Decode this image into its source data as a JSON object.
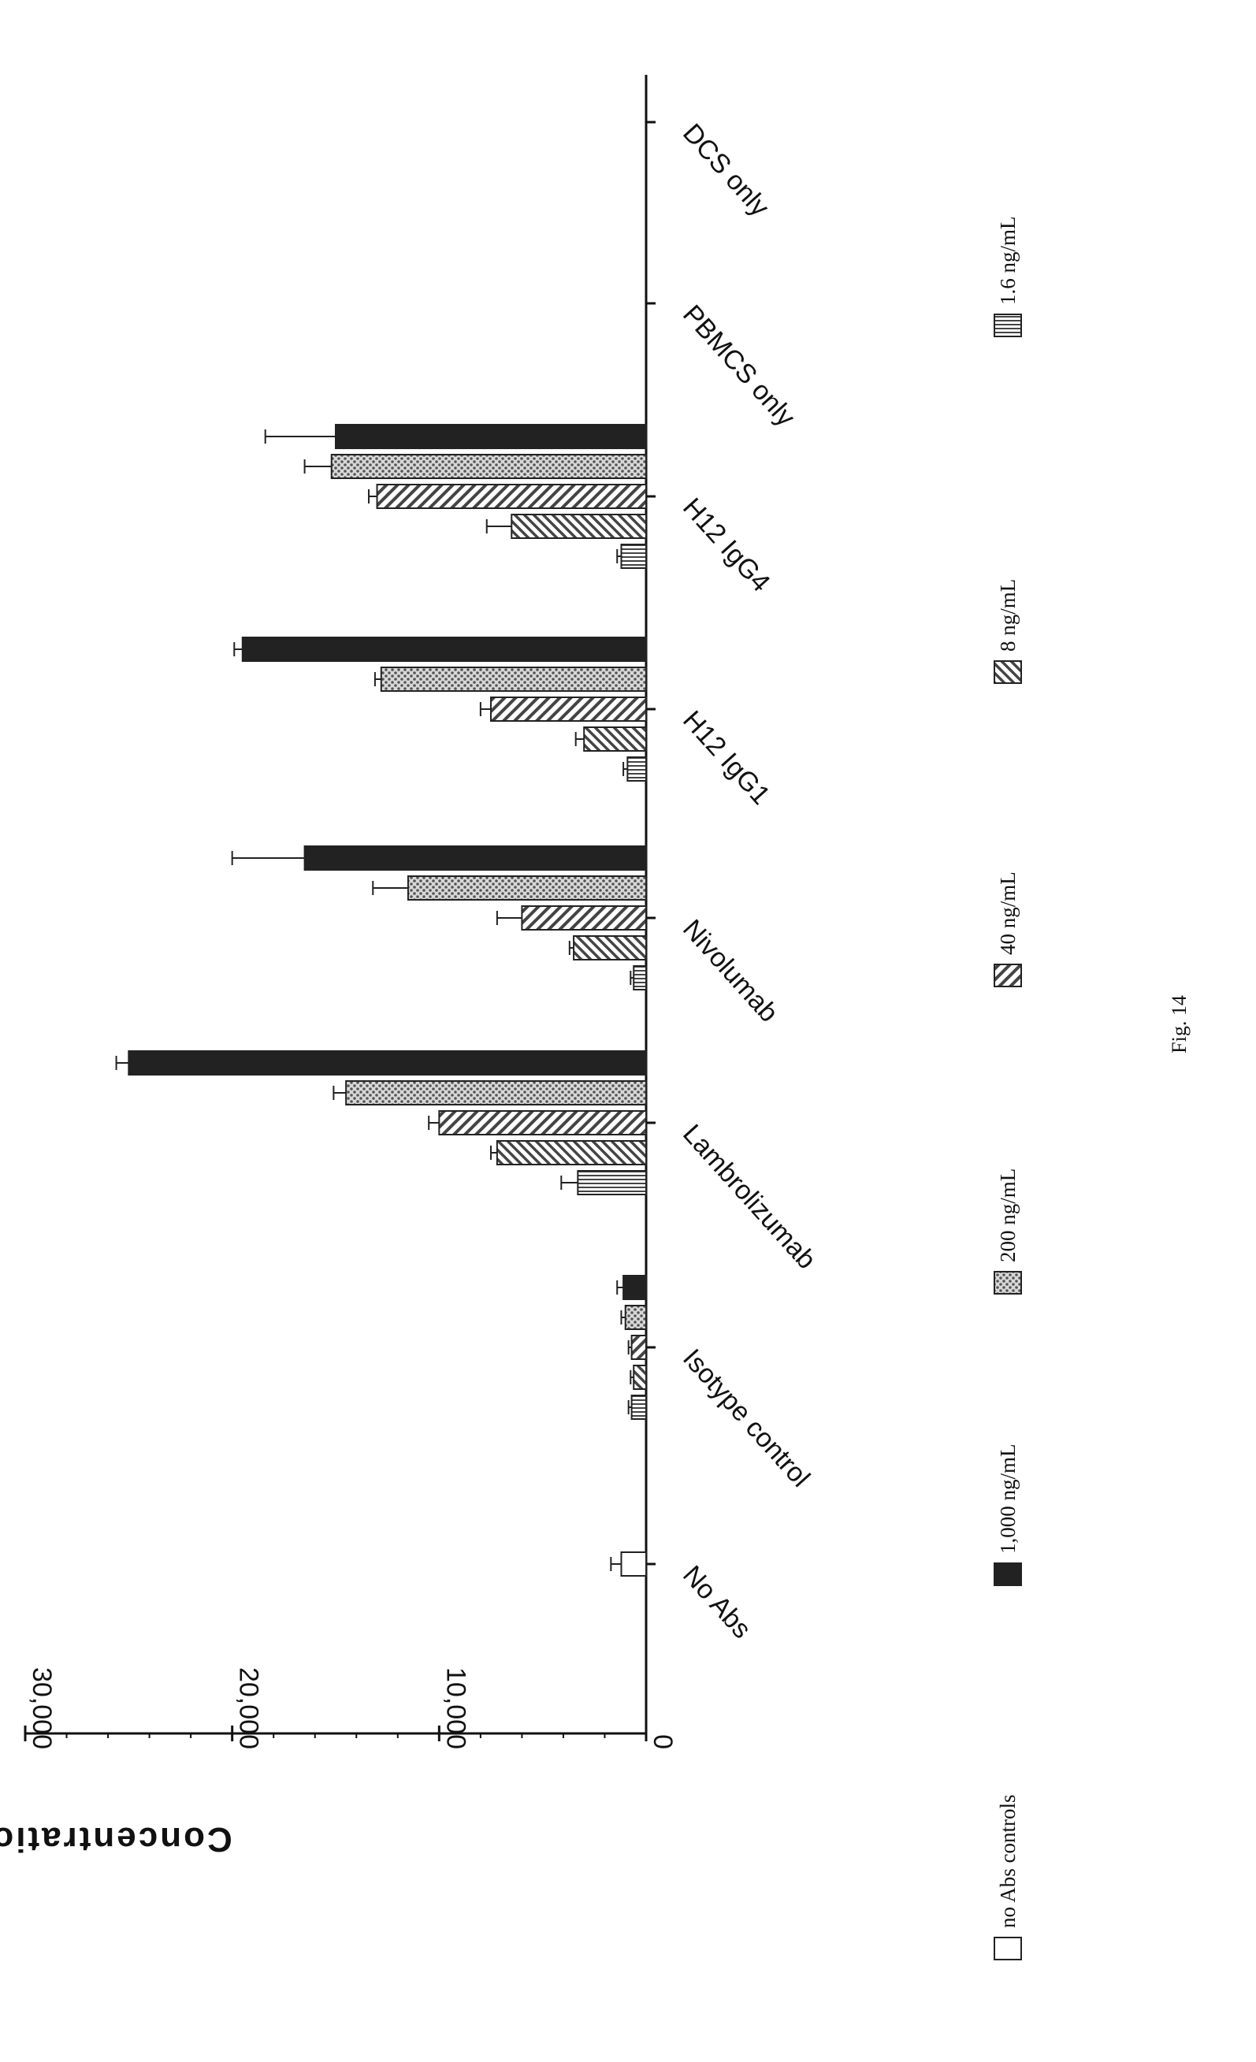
{
  "figure_label": "Fig. 14",
  "chart_data": {
    "type": "bar",
    "title": "",
    "xlabel": "",
    "ylabel": "Concentration pg/mL",
    "ylim": [
      0,
      30000
    ],
    "yticks": [
      0,
      10000,
      20000,
      30000
    ],
    "ytick_labels": [
      "0",
      "10,000",
      "20,000",
      "30,000"
    ],
    "categories": [
      "No Abs",
      "Isotype control",
      "Lambrolizumab",
      "Nivolumab",
      "H12 IgG1",
      "H12 IgG4",
      "PBMCS only",
      "DCS only"
    ],
    "legend_position": "bottom",
    "series": [
      {
        "name": "no Abs controls",
        "pattern": "empty",
        "color": "#ffffff",
        "values": [
          1200,
          null,
          null,
          null,
          null,
          null,
          0,
          0
        ],
        "errors": [
          500,
          null,
          null,
          null,
          null,
          null,
          0,
          0
        ]
      },
      {
        "name": "1,000 ng/mL",
        "pattern": "solid-dark",
        "color": "#222222",
        "values": [
          null,
          1100,
          25000,
          16500,
          19500,
          15000,
          null,
          null
        ],
        "errors": [
          null,
          300,
          600,
          3500,
          400,
          3400,
          null,
          null
        ]
      },
      {
        "name": "200 ng/mL",
        "pattern": "dense-dots",
        "color": "#9a9a9a",
        "values": [
          null,
          1000,
          14500,
          11500,
          12800,
          15200,
          null,
          null
        ],
        "errors": [
          null,
          200,
          600,
          1700,
          300,
          1300,
          null,
          null
        ]
      },
      {
        "name": "40 ng/mL",
        "pattern": "diagonal",
        "color": "#666666",
        "values": [
          null,
          700,
          10000,
          6000,
          7500,
          13000,
          null,
          null
        ],
        "errors": [
          null,
          150,
          500,
          1200,
          500,
          400,
          null,
          null
        ]
      },
      {
        "name": "8 ng/mL",
        "pattern": "diagonal-back",
        "color": "#666666",
        "values": [
          null,
          600,
          7200,
          3500,
          3000,
          6500,
          null,
          null
        ],
        "errors": [
          null,
          150,
          300,
          200,
          400,
          1200,
          null,
          null
        ]
      },
      {
        "name": "1.6 ng/mL",
        "pattern": "horizontal",
        "color": "#666666",
        "values": [
          null,
          700,
          3300,
          600,
          900,
          1200,
          null,
          null
        ],
        "errors": [
          null,
          150,
          800,
          150,
          200,
          200,
          null,
          null
        ]
      }
    ]
  }
}
